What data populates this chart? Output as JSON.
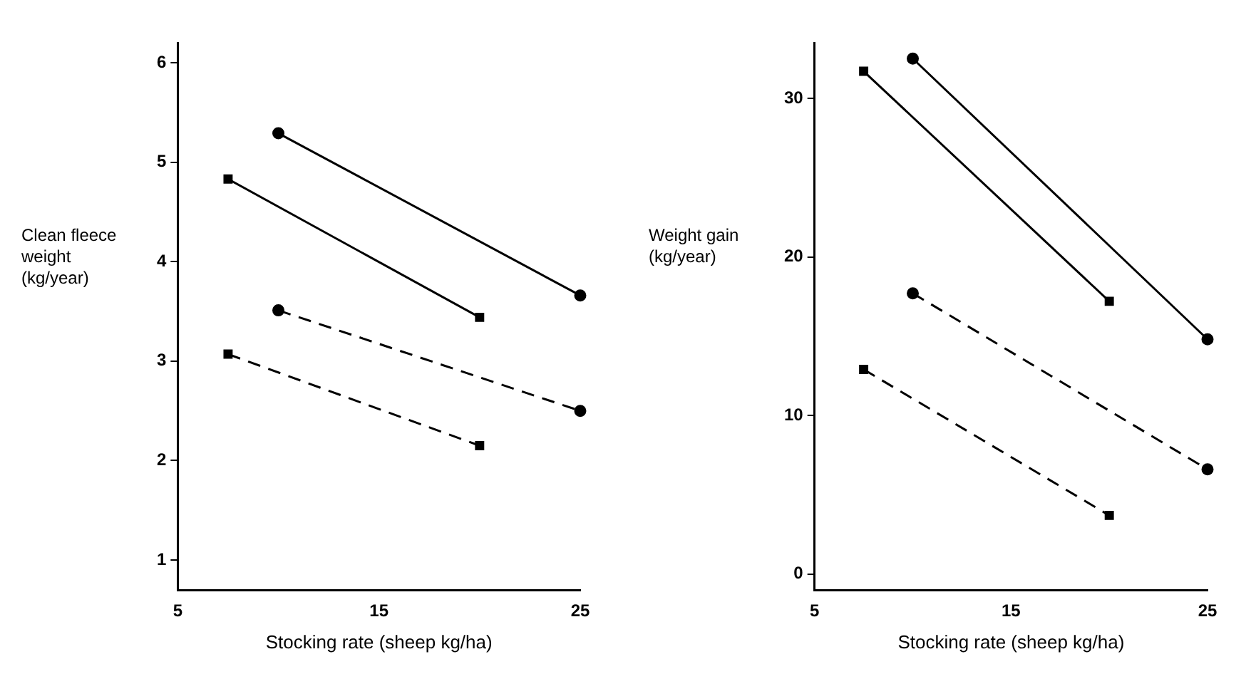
{
  "chart_data": [
    {
      "type": "line",
      "xlabel": "Stocking rate (sheep kg/ha)",
      "ylabel": "Clean fleece weight (kg/year)",
      "xlim": [
        5,
        25
      ],
      "xticks": [
        5,
        15,
        25
      ],
      "ylim": [
        0.7,
        6.2
      ],
      "yticks": [
        1,
        2,
        3,
        4,
        5,
        6
      ],
      "grid": false,
      "legend": false,
      "series": [
        {
          "color": "#000000",
          "marker": "circle",
          "line_style": "solid",
          "x": [
            10,
            25
          ],
          "values": [
            5.29,
            3.66
          ]
        },
        {
          "color": "#000000",
          "marker": "square",
          "line_style": "solid",
          "x": [
            7.5,
            20
          ],
          "values": [
            4.83,
            3.44
          ]
        },
        {
          "color": "#000000",
          "marker": "circle",
          "line_style": "dashed",
          "x": [
            10,
            25
          ],
          "values": [
            3.51,
            2.5
          ]
        },
        {
          "color": "#000000",
          "marker": "square",
          "line_style": "dashed",
          "x": [
            7.5,
            20
          ],
          "values": [
            3.07,
            2.15
          ]
        }
      ]
    },
    {
      "type": "line",
      "xlabel": "Stocking rate (sheep kg/ha)",
      "ylabel": "Weight gain (kg/year)",
      "xlim": [
        5,
        25
      ],
      "xticks": [
        5,
        15,
        25
      ],
      "ylim": [
        -1,
        33.5
      ],
      "yticks": [
        0,
        10,
        20,
        30
      ],
      "grid": false,
      "legend": false,
      "series": [
        {
          "color": "#000000",
          "marker": "circle",
          "line_style": "solid",
          "x": [
            10,
            25
          ],
          "values": [
            32.5,
            14.8
          ]
        },
        {
          "color": "#000000",
          "marker": "square",
          "line_style": "solid",
          "x": [
            7.5,
            20
          ],
          "values": [
            31.7,
            17.2
          ]
        },
        {
          "color": "#000000",
          "marker": "circle",
          "line_style": "dashed",
          "x": [
            10,
            25
          ],
          "values": [
            17.7,
            6.6
          ]
        },
        {
          "color": "#000000",
          "marker": "square",
          "line_style": "dashed",
          "x": [
            7.5,
            20
          ],
          "values": [
            12.9,
            3.7
          ]
        }
      ]
    }
  ]
}
